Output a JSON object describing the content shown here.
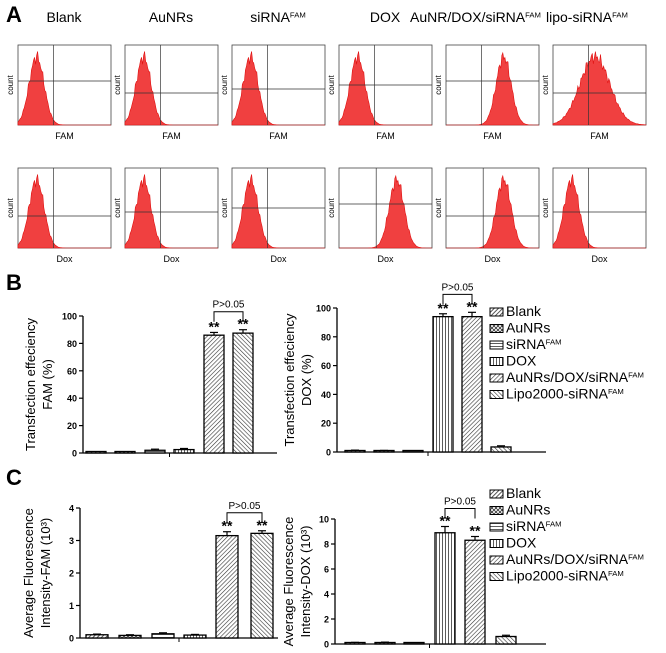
{
  "panel_labels": {
    "a": "A",
    "b": "B",
    "c": "C"
  },
  "flow": {
    "titles": [
      {
        "main": "Blank",
        "sup": ""
      },
      {
        "main": "AuNRs",
        "sup": ""
      },
      {
        "main": "siRNA",
        "sup": "FAM"
      },
      {
        "main": "DOX",
        "sup": ""
      },
      {
        "main": "AuNR/DOX/siRNA",
        "sup": "FAM"
      },
      {
        "main": "lipo-siRNA",
        "sup": "FAM"
      }
    ],
    "ylabel": "count",
    "rows": [
      {
        "xlabel": "FAM",
        "signal": [
          "low",
          "low",
          "low",
          "low",
          "high",
          "broad"
        ]
      },
      {
        "xlabel": "Dox",
        "signal": [
          "low",
          "low",
          "low",
          "high",
          "high",
          "low"
        ]
      }
    ],
    "histogram_color": "#f04040"
  },
  "legend": [
    {
      "main": "Blank",
      "sup": "",
      "pattern": "dense-diag"
    },
    {
      "main": "AuNRs",
      "sup": "",
      "pattern": "cross"
    },
    {
      "main": "siRNA",
      "sup": "FAM",
      "pattern": "horizontal"
    },
    {
      "main": "DOX",
      "sup": "",
      "pattern": "vertical"
    },
    {
      "main": "AuNRs/DOX/siRNA",
      "sup": "FAM",
      "pattern": "diag"
    },
    {
      "main": "Lipo2000-siRNA",
      "sup": "FAM",
      "pattern": "diag-back"
    }
  ],
  "chart_data": [
    {
      "type": "bar",
      "panel": "B",
      "ylabel": [
        "Transfection effeciency",
        "FAM (%)"
      ],
      "ylim": [
        0,
        100
      ],
      "yticks": [
        "0",
        "20",
        "40",
        "60",
        "80",
        "100"
      ],
      "values": [
        0.5,
        0.5,
        2,
        2.5,
        86,
        87.5
      ],
      "errors": [
        0.3,
        0.3,
        0.8,
        0.8,
        2,
        2.5
      ],
      "stars": [
        "",
        "",
        "",
        "",
        "**",
        "**"
      ],
      "bracket": {
        "from": 4,
        "to": 5,
        "label": "P>0.05"
      }
    },
    {
      "type": "bar",
      "panel": "B",
      "ylabel": [
        "Transfection effeciency",
        "DOX (%)"
      ],
      "ylim": [
        0,
        100
      ],
      "yticks": [
        "0",
        "20",
        "40",
        "60",
        "80",
        "100"
      ],
      "values": [
        1,
        0.8,
        0.5,
        94,
        94,
        3.5
      ],
      "errors": [
        0.3,
        0.3,
        0.3,
        2,
        3,
        0.8
      ],
      "stars": [
        "",
        "",
        "",
        "**",
        "**",
        ""
      ],
      "bracket": {
        "from": 3,
        "to": 4,
        "label": "P>0.05"
      }
    },
    {
      "type": "bar",
      "panel": "C",
      "ylabel": [
        "Average Fluorescence",
        "Intensity-FAM (10³)"
      ],
      "ylim": [
        0,
        4
      ],
      "yticks": [
        "0",
        "1",
        "2",
        "3",
        "4"
      ],
      "values": [
        0.1,
        0.08,
        0.13,
        0.09,
        3.15,
        3.22
      ],
      "errors": [
        0.02,
        0.02,
        0.03,
        0.02,
        0.12,
        0.08
      ],
      "stars": [
        "",
        "",
        "",
        "",
        "**",
        "**"
      ],
      "bracket": {
        "from": 4,
        "to": 5,
        "label": "P>0.05"
      }
    },
    {
      "type": "bar",
      "panel": "C",
      "ylabel": [
        "Average Fluorescence",
        "Intensity-DOX (10³)"
      ],
      "ylim": [
        0,
        10
      ],
      "yticks": [
        "0",
        "2",
        "4",
        "6",
        "8",
        "10"
      ],
      "values": [
        0.1,
        0.12,
        0.08,
        8.9,
        8.3,
        0.6
      ],
      "errors": [
        0.03,
        0.03,
        0.02,
        0.5,
        0.3,
        0.1
      ],
      "stars": [
        "",
        "",
        "",
        "**",
        "**",
        ""
      ],
      "bracket": {
        "from": 3,
        "to": 4,
        "label": "P>0.05"
      }
    }
  ]
}
